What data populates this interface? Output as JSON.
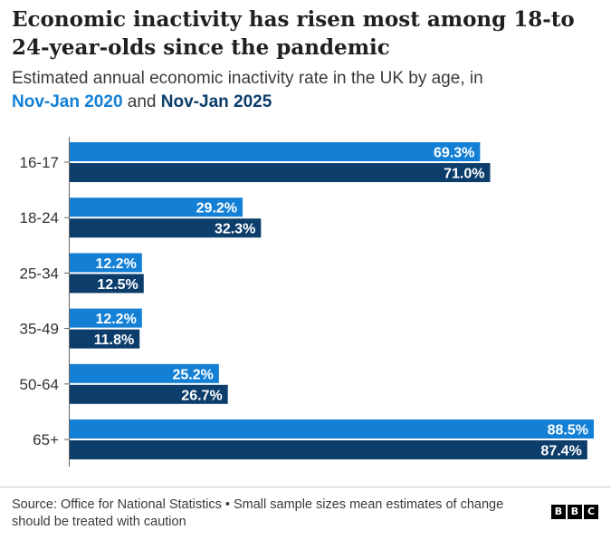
{
  "header": {
    "title": "Economic inactivity has risen most among 18-to 24-year-olds since the pandemic",
    "subtitle_prefix": "Estimated annual economic inactivity rate in the UK by age, in",
    "period_2020": "Nov-Jan 2020",
    "joiner": "and",
    "period_2025": "Nov-Jan 2025"
  },
  "footer": {
    "source": "Source: Office for National Statistics • Small sample sizes mean estimates of change should be treated with caution",
    "logo_letters": [
      "B",
      "B",
      "C"
    ]
  },
  "colors": {
    "series_2020": "#1380d6",
    "series_2025": "#0c3d6b",
    "label_text": "#ffffff",
    "axis": "#666666"
  },
  "chart_data": {
    "type": "bar",
    "orientation": "horizontal",
    "categories": [
      "16-17",
      "18-24",
      "25-34",
      "35-49",
      "50-64",
      "65+"
    ],
    "series": [
      {
        "name": "Nov-Jan 2020",
        "values": [
          69.3,
          29.2,
          12.2,
          12.2,
          25.2,
          88.5
        ]
      },
      {
        "name": "Nov-Jan 2025",
        "values": [
          71.0,
          32.3,
          12.5,
          11.8,
          26.7,
          87.4
        ]
      }
    ],
    "value_suffix": "%",
    "xlim": [
      0,
      88.5
    ],
    "grid": false,
    "legend": "in subtitle"
  }
}
